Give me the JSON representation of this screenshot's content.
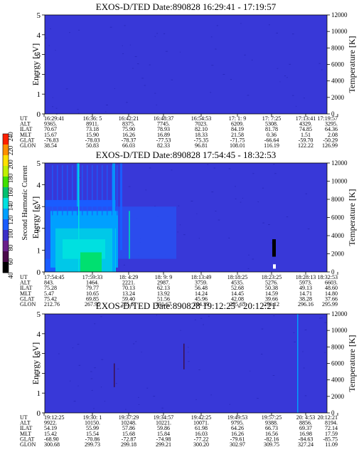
{
  "figure": {
    "colorbar": {
      "label": "Second Harmonic Current",
      "ticks": [
        40,
        60,
        80,
        100,
        120,
        140,
        160,
        180,
        200,
        220,
        240
      ],
      "colors": [
        "#000000",
        "#4a0a4a",
        "#6a1f8a",
        "#3a2fc8",
        "#1a5cff",
        "#00a0ff",
        "#00e0e0",
        "#00c070",
        "#40e000",
        "#c0f000",
        "#ffe000",
        "#ff9000",
        "#ff2000"
      ]
    },
    "panel_colors": {
      "background": "#3838d8",
      "noise": "#2a2ac0"
    }
  },
  "chart_data": [
    {
      "type": "heatmap",
      "title": "EXOS-D/TED   Date:890828   16:29:41 - 17:19:57",
      "ylabel": "Energy [eV]",
      "y2label": "Temperature [K]",
      "ylim": [
        0,
        5
      ],
      "y2lim": [
        0,
        12000
      ],
      "yticks": [
        0,
        1,
        2,
        3,
        4,
        5
      ],
      "y2ticks": [
        0,
        2000,
        4000,
        6000,
        8000,
        10000,
        12000
      ],
      "grid": false,
      "features": [],
      "table": {
        "row_labels": [
          "UT",
          "ALT",
          "ILAT",
          "MLT",
          "GLAT",
          "GLON"
        ],
        "columns": [
          [
            "16:29:41",
            "9365.",
            "70.67",
            "15.67",
            "-76.83",
            "38.54"
          ],
          [
            "16:36: 5",
            "8911.",
            "73.18",
            "15.90",
            "-78.03",
            "50.83"
          ],
          [
            "16:42:21",
            "8375.",
            "75.90",
            "16.26",
            "-78.37",
            "66.03"
          ],
          [
            "16:48:37",
            "7745.",
            "78.93",
            "16.89",
            "-77.53",
            "82.33"
          ],
          [
            "16:54:53",
            "7023.",
            "82.10",
            "18.33",
            "-75.35",
            "96.81"
          ],
          [
            "17: 1: 9",
            "6209.",
            "84.19",
            "21.58",
            "-71.75",
            "108.01"
          ],
          [
            "17: 7:25",
            "5308.",
            "81.78",
            "0.36",
            "-66.64",
            "116.19"
          ],
          [
            "17:13:41",
            "4329.",
            "74.85",
            "1.51",
            "-59.70",
            "122.22"
          ],
          [
            "17:19:57",
            "3295.",
            "64.36",
            "2.08",
            "-50.29",
            "126.99"
          ]
        ]
      }
    },
    {
      "type": "heatmap",
      "title": "EXOS-D/TED   Date:890828   17:54:45 - 18:32:53",
      "ylabel": "Energy [eV]",
      "y2label": "Temperature [K]",
      "ylim": [
        0,
        5
      ],
      "y2lim": [
        0,
        12000
      ],
      "yticks": [
        0,
        1,
        2,
        3,
        4,
        5
      ],
      "y2ticks": [
        0,
        2000,
        4000,
        6000,
        8000,
        10000,
        12000
      ],
      "grid": false,
      "features": [],
      "table": {
        "row_labels": [
          "UT",
          "ALT",
          "ILAT",
          "MLT",
          "GLAT",
          "GLON"
        ],
        "columns": [
          [
            "17:54:45",
            "843.",
            "75.28",
            "5.47",
            "75.42",
            "212.76"
          ],
          [
            "17:59:33",
            "1464.",
            "79.77",
            "10.65",
            "69.85",
            "267.95"
          ],
          [
            "18: 4:29",
            "2221.",
            "70.13",
            "13.24",
            "59.40",
            "285.61"
          ],
          [
            "18: 9: 9",
            "2987.",
            "62.13",
            "13.92",
            "51.56",
            "291.67"
          ],
          [
            "18:13:49",
            "3759.",
            "56.48",
            "14.24",
            "45.96",
            "294.39"
          ],
          [
            "18:18:25",
            "4535.",
            "52.68",
            "14.45",
            "42.08",
            "295.65"
          ],
          [
            "18:23:25",
            "5276.",
            "50.38",
            "14.59",
            "39.66",
            "296.12"
          ],
          [
            "18:28:13",
            "5973.",
            "49.13",
            "14.71",
            "38.28",
            "296.16"
          ],
          [
            "18:32:53",
            "6603.",
            "48.60",
            "14.80",
            "37.66",
            "295.99"
          ]
        ]
      }
    },
    {
      "type": "heatmap",
      "title": "EXOS-D/TED   Date:890828   19:12:25 - 20:12:21",
      "ylabel": "Energy [eV]",
      "y2label": "Temperature [K]",
      "ylim": [
        0,
        5
      ],
      "y2lim": [
        0,
        12000
      ],
      "yticks": [
        0,
        1,
        2,
        3,
        4,
        5
      ],
      "y2ticks": [
        0,
        2000,
        4000,
        6000,
        8000,
        10000,
        12000
      ],
      "grid": false,
      "features": [],
      "table": {
        "row_labels": [
          "UT",
          "ALT",
          "ILAT",
          "MLT",
          "GLAT",
          "GLON"
        ],
        "columns": [
          [
            "19:12:25",
            "9922.",
            "54.19",
            "15.42",
            "-68.90",
            "300.68"
          ],
          [
            "19:30: 1",
            "10150.",
            "55.99",
            "15.54",
            "-70.86",
            "299.73"
          ],
          [
            "19:37:29",
            "10248.",
            "57.86",
            "15.68",
            "-72.87",
            "299.18"
          ],
          [
            "19:34:57",
            "10221.",
            "59.86",
            "15.84",
            "-74.98",
            "299.21"
          ],
          [
            "19:42:25",
            "10071.",
            "61.98",
            "16.03",
            "-77.22",
            "300.20"
          ],
          [
            "19:49:53",
            "9795.",
            "64.26",
            "16.26",
            "-79.61",
            "302.97"
          ],
          [
            "19:57:25",
            "9388.",
            "66.73",
            "16.56",
            "-82.16",
            "309.75"
          ],
          [
            "20: 4:53",
            "8856.",
            "69.37",
            "16.98",
            "-84.63",
            "327.24"
          ],
          [
            "20:12:21",
            "8194.",
            "72.14",
            "17.59",
            "-85.75",
            "11.09"
          ]
        ]
      }
    }
  ]
}
